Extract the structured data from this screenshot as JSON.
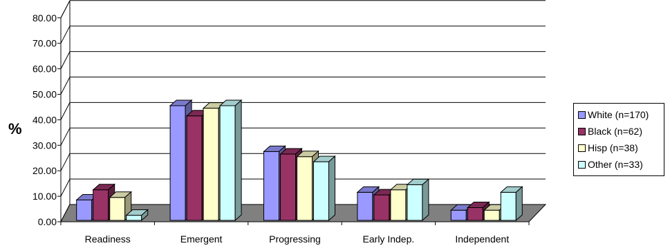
{
  "chart_data": {
    "type": "bar",
    "ylabel": "%",
    "ylim": [
      0,
      80
    ],
    "yticks": [
      "0.00",
      "10.00",
      "20.00",
      "30.00",
      "40.00",
      "50.00",
      "60.00",
      "70.00",
      "80.00"
    ],
    "categories": [
      "Readiness",
      "Emergent",
      "Progressing",
      "Early Indep.",
      "Independent"
    ],
    "series": [
      {
        "name": "White (n=170)",
        "color": "#9999ff",
        "values": [
          8,
          45,
          27,
          11,
          4
        ]
      },
      {
        "name": "Black (n=62)",
        "color": "#993366",
        "values": [
          12,
          41,
          26,
          10,
          5
        ]
      },
      {
        "name": "Hisp  (n=38)",
        "color": "#ffffcc",
        "values": [
          9,
          44,
          25,
          12,
          4
        ]
      },
      {
        "name": "Other  (n=33)",
        "color": "#ccffff",
        "values": [
          2,
          45,
          23,
          14,
          11
        ]
      }
    ],
    "grid": true,
    "legend": "right",
    "three_d": true,
    "floor_color": "#808080"
  }
}
